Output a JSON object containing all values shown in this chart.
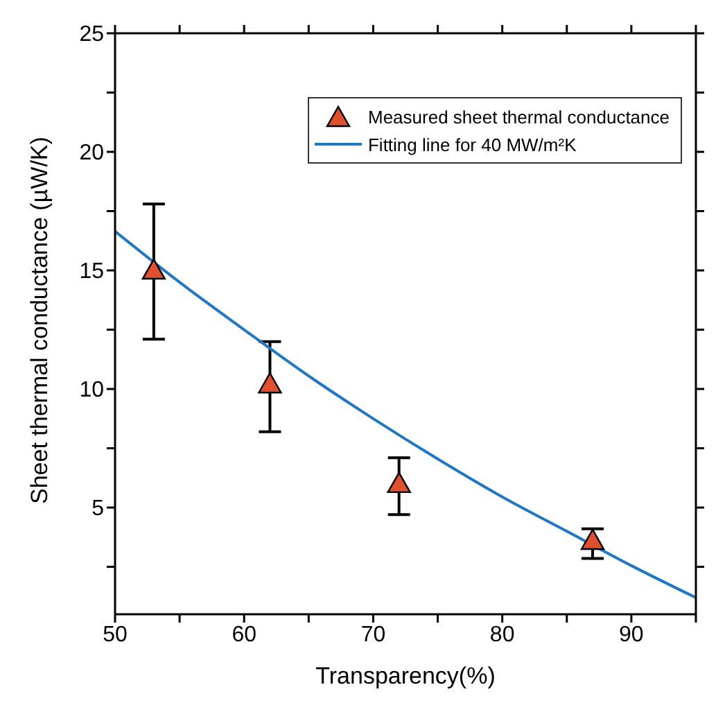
{
  "chart_data": {
    "type": "scatter",
    "xlabel": "Transparency(%)",
    "ylabel": "Sheet thermal conductance (µW/K)",
    "xlim": [
      50,
      95
    ],
    "xticks": [
      50,
      {
        "value": 55,
        "label": null
      },
      60,
      {
        "value": 65,
        "label": null
      },
      70,
      {
        "value": 75,
        "label": null
      },
      80,
      {
        "value": 85,
        "label": null
      },
      90,
      {
        "value": 95,
        "label": null
      }
    ],
    "ylim": [
      0.5,
      25
    ],
    "yticks": [
      {
        "value": 2.5,
        "label": null
      },
      5,
      {
        "value": 7.5,
        "label": null
      },
      10,
      {
        "value": 12.5,
        "label": null
      },
      15,
      {
        "value": 17.5,
        "label": null
      },
      20,
      {
        "value": 22.5,
        "label": null
      },
      25
    ],
    "grid": false,
    "legend": "top right",
    "series": [
      {
        "name": "Measured sheet thermal conductance",
        "marker": "triangle",
        "color": "#e0502f",
        "x": [
          53,
          62,
          72,
          87
        ],
        "values": [
          15.0,
          10.2,
          6.0,
          3.6
        ],
        "errors": [
          [
            12.1,
            17.8
          ],
          [
            8.2,
            12.0
          ],
          [
            4.7,
            7.1
          ],
          [
            2.85,
            4.1
          ]
        ]
      },
      {
        "name": "Fitting line for 40 MW/m²K",
        "type": "line",
        "marker": "none",
        "color": "#1f77c8",
        "x": [
          50,
          55,
          60,
          65,
          70,
          75,
          80,
          85,
          90,
          95
        ],
        "values": [
          16.65,
          14.5,
          12.5,
          10.55,
          8.75,
          7.05,
          5.45,
          4.0,
          2.55,
          1.2
        ]
      }
    ]
  }
}
